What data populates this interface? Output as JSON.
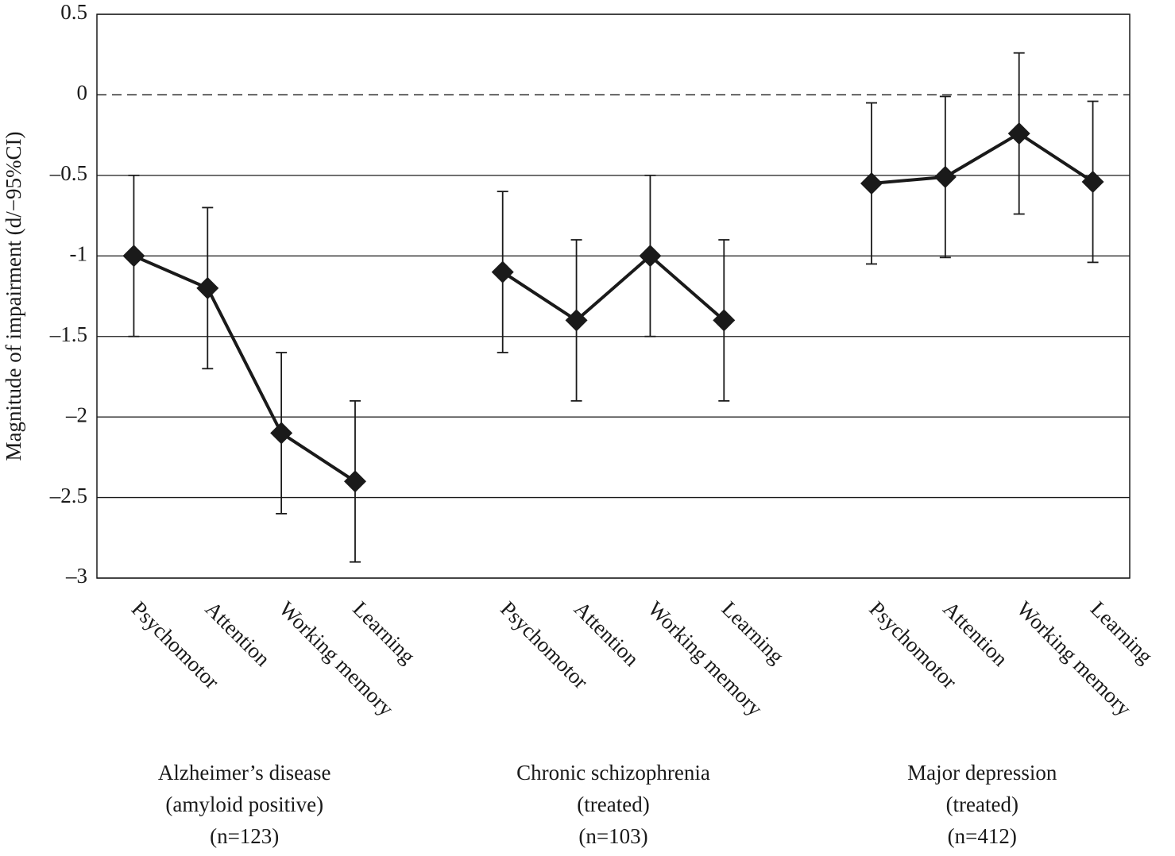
{
  "chart_data": {
    "type": "line",
    "ylabel": "Magnitude of impairment (d/−95%CI)",
    "ylim": [
      -3,
      0.5
    ],
    "yticks": [
      {
        "value": 0.5,
        "label": "0.5"
      },
      {
        "value": 0,
        "label": "0"
      },
      {
        "value": -0.5,
        "label": "–0.5"
      },
      {
        "value": -1,
        "label": "-1"
      },
      {
        "value": -1.5,
        "label": "–1.5"
      },
      {
        "value": -2,
        "label": "–2"
      },
      {
        "value": -2.5,
        "label": "–2.5"
      },
      {
        "value": -3,
        "label": "–3"
      }
    ],
    "grid": true,
    "color": "#1a1a1a",
    "groups": [
      {
        "label_lines": [
          "Alzheimer’s disease",
          "(amyloid positive)",
          "(n=123)"
        ],
        "categories": [
          "Psychomotor",
          "Attention",
          "Working memory",
          "Learning"
        ],
        "values": [
          -1,
          -1.2,
          -2.1,
          -2.4
        ],
        "errors": [
          0.5,
          0.5,
          0.5,
          0.5
        ]
      },
      {
        "label_lines": [
          "Chronic schizophrenia",
          "(treated)",
          "(n=103)"
        ],
        "categories": [
          "Psychomotor",
          "Attention",
          "Working memory",
          "Learning"
        ],
        "values": [
          -1.1,
          -1.4,
          -1,
          -1.4
        ],
        "errors": [
          0.5,
          0.5,
          0.5,
          0.5
        ]
      },
      {
        "label_lines": [
          "Major depression",
          "(treated)",
          "(n=412)"
        ],
        "categories": [
          "Psychomotor",
          "Attention",
          "Working memory",
          "Learning"
        ],
        "values": [
          -0.55,
          -0.51,
          -0.24,
          -0.54
        ],
        "errors": [
          0.5,
          0.5,
          0.5,
          0.5
        ]
      }
    ]
  }
}
